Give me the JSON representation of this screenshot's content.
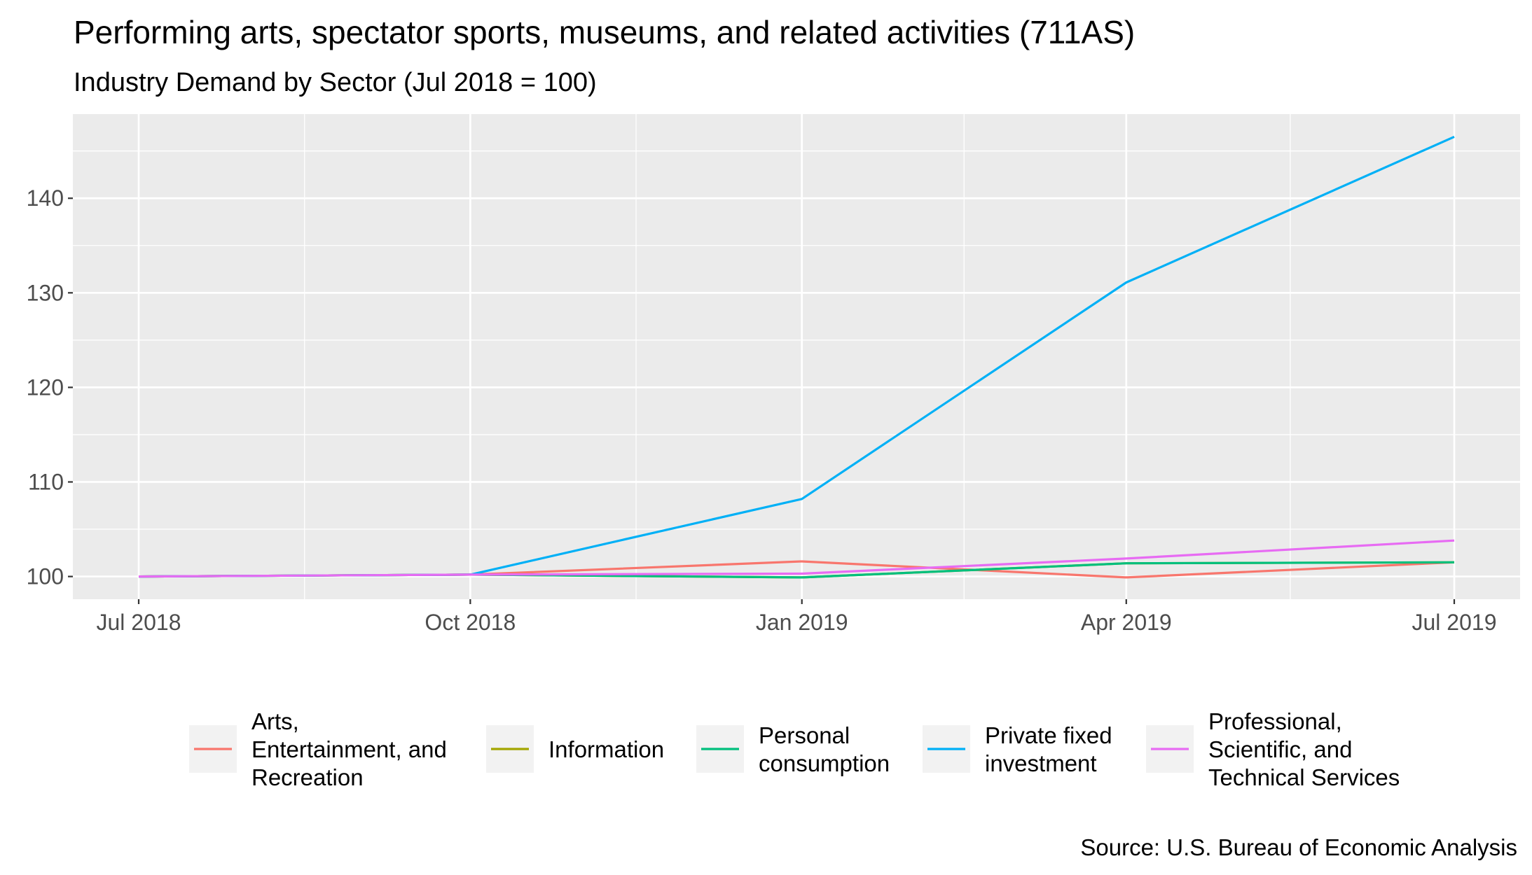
{
  "chart_data": {
    "type": "line",
    "title": "Performing arts, spectator sports, museums, and related activities (711AS)",
    "subtitle": "Industry Demand by Sector (Jul 2018 = 100)",
    "xlabel": "",
    "ylabel": "",
    "caption": "Source: U.S. Bureau of Economic Analysis",
    "x": [
      "2018-07-01",
      "2018-10-01",
      "2019-01-01",
      "2019-04-01",
      "2019-07-01"
    ],
    "x_tick_labels": [
      "Jul 2018",
      "Oct 2018",
      "Jan 2019",
      "Apr 2019",
      "Jul 2019"
    ],
    "y_ticks": [
      100,
      110,
      120,
      130,
      140
    ],
    "ylim": [
      97.6,
      148.9
    ],
    "grid": true,
    "legend_position": "bottom",
    "series": [
      {
        "name": "Arts, Entertainment, and Recreation",
        "legend_lines": [
          "Arts,",
          "Entertainment, and",
          "Recreation"
        ],
        "color": "#F8766D",
        "values": [
          100.0,
          100.2,
          101.6,
          99.9,
          101.5
        ]
      },
      {
        "name": "Information",
        "legend_lines": [
          "Information"
        ],
        "color": "#A3A500",
        "values": [
          100.0,
          100.2,
          99.9,
          101.4,
          101.5
        ]
      },
      {
        "name": "Personal consumption",
        "legend_lines": [
          "Personal",
          "consumption"
        ],
        "color": "#00BF7D",
        "values": [
          100.0,
          100.2,
          99.9,
          101.4,
          101.5
        ]
      },
      {
        "name": "Private fixed investment",
        "legend_lines": [
          "Private fixed",
          "investment"
        ],
        "color": "#00B0F6",
        "values": [
          100.0,
          100.2,
          108.2,
          131.1,
          146.5
        ]
      },
      {
        "name": "Professional, Scientific, and Technical Services",
        "legend_lines": [
          "Professional,",
          "Scientific, and",
          "Technical Services"
        ],
        "color": "#E76BF3",
        "values": [
          100.0,
          100.2,
          100.3,
          101.9,
          103.8
        ]
      }
    ]
  }
}
